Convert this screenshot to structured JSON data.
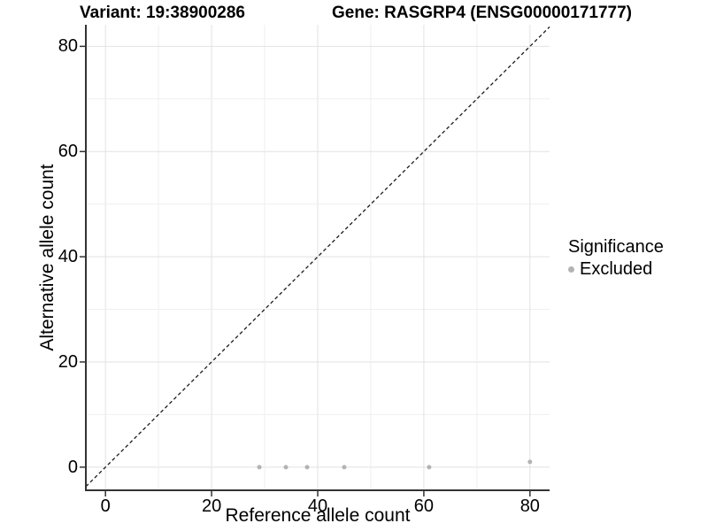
{
  "chart_data": {
    "type": "scatter",
    "title_left": "Variant: 19:38900286",
    "title_right": "Gene: RASGRP4 (ENSG00000171777)",
    "xlabel": "Reference allele count",
    "ylabel": "Alternative allele count",
    "x_ticks": [
      0,
      20,
      40,
      60,
      80
    ],
    "y_ticks": [
      0,
      20,
      40,
      60,
      80
    ],
    "xlim": [
      -3.7,
      83.7
    ],
    "ylim": [
      -4.4,
      84.1
    ],
    "grid": true,
    "minor_grid_step": 10,
    "major_grid_step": 20,
    "identity_line": {
      "style": "dashed",
      "slope": 1,
      "intercept": 0
    },
    "series": [
      {
        "name": "Excluded",
        "color": "#b3b3b3",
        "points": [
          {
            "x": 29,
            "y": 0
          },
          {
            "x": 34,
            "y": 0
          },
          {
            "x": 38,
            "y": 0
          },
          {
            "x": 45,
            "y": 0
          },
          {
            "x": 61,
            "y": 0
          },
          {
            "x": 80,
            "y": 1
          }
        ]
      }
    ],
    "legend_position": "right"
  },
  "legend": {
    "title": "Significance",
    "items": [
      {
        "label": "Excluded",
        "color": "#b3b3b3"
      }
    ]
  },
  "colors": {
    "background": "#ffffff",
    "axis_line": "#333333",
    "tick_mark": "#333333",
    "grid_major": "#e2e2e2",
    "grid_minor": "#efefef",
    "identity_line": "#1a1a1a",
    "point": "#b3b3b3",
    "text": "#000000"
  }
}
